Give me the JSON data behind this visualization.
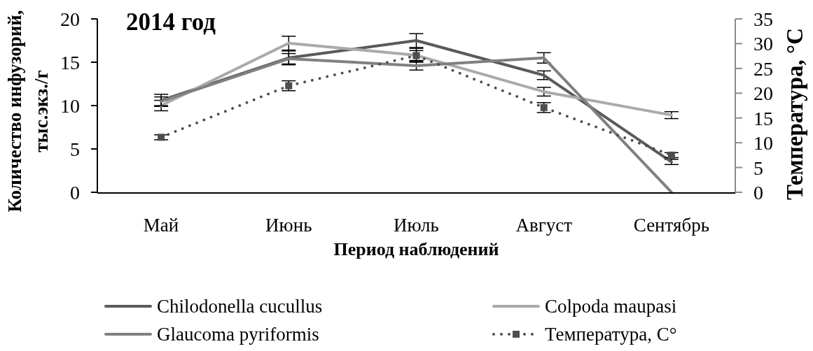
{
  "chart_data": {
    "type": "line",
    "title": "2014 год",
    "xlabel": "Период наблюдений",
    "ylabel": "Количество инфузорий,\nтыс.экз./г",
    "y2label": "Температура, °C",
    "categories": [
      "Май",
      "Июнь",
      "Июль",
      "Август",
      "Сентябрь"
    ],
    "series": [
      {
        "name": "Chilodonella cucullus",
        "color": "#5a5a5a",
        "values": [
          10.6,
          15.5,
          17.5,
          13.5,
          3.5
        ],
        "errors": [
          0.7,
          0.8,
          0.8,
          0.5,
          0.3
        ]
      },
      {
        "name": "Colpoda maupasi",
        "color": "#aaaaaa",
        "values": [
          10.0,
          17.2,
          15.8,
          11.6,
          8.9
        ],
        "errors": [
          0.6,
          0.8,
          0.8,
          0.5,
          0.4
        ]
      },
      {
        "name": "Glaucoma pyriformis",
        "color": "#808080",
        "values": [
          10.5,
          15.4,
          14.6,
          15.5,
          0
        ],
        "errors": [
          0.5,
          0.6,
          0.5,
          0.6,
          null
        ]
      },
      {
        "name": "Температура, C°",
        "color": "#4d4d4d",
        "values": [
          11.1,
          21.5,
          27.6,
          17.1,
          7.5
        ],
        "errors": [
          0.5,
          1,
          1,
          1,
          0.5
        ],
        "axis": "y2",
        "line_style": "dotted",
        "marker": "square"
      }
    ],
    "ylim": [
      0,
      20
    ],
    "yticks": [
      0,
      5,
      10,
      15,
      20
    ],
    "y2lim": [
      0,
      35
    ],
    "y2ticks": [
      0,
      5,
      10,
      15,
      20,
      25,
      30,
      35
    ],
    "legend": "bottom"
  }
}
